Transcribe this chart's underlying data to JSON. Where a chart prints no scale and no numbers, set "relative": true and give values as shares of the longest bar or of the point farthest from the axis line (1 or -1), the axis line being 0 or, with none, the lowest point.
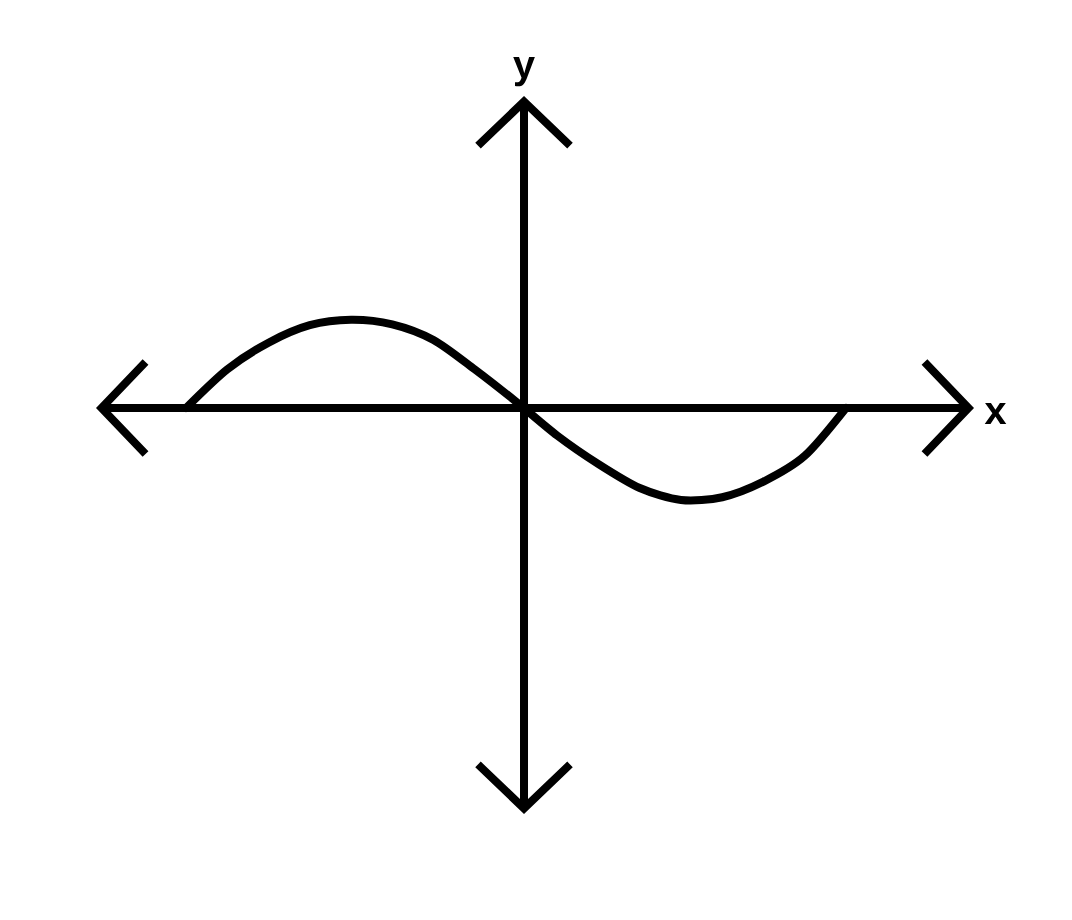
{
  "chart_data": {
    "type": "line",
    "xlabel": "x",
    "annotations": [
      "y"
    ],
    "relative": true,
    "categories": [
      null,
      null,
      null,
      null,
      null,
      null,
      null,
      null,
      null,
      null,
      null,
      null,
      null,
      null,
      null,
      null,
      null
    ],
    "values": [
      0,
      0.42,
      0.71,
      0.9,
      0.96,
      0.91,
      0.74,
      0.42,
      0.07,
      -0.3,
      -0.61,
      -0.87,
      -1.0,
      -0.97,
      -0.8,
      -0.52,
      0
    ],
    "color": "#000000",
    "marker": "none"
  }
}
